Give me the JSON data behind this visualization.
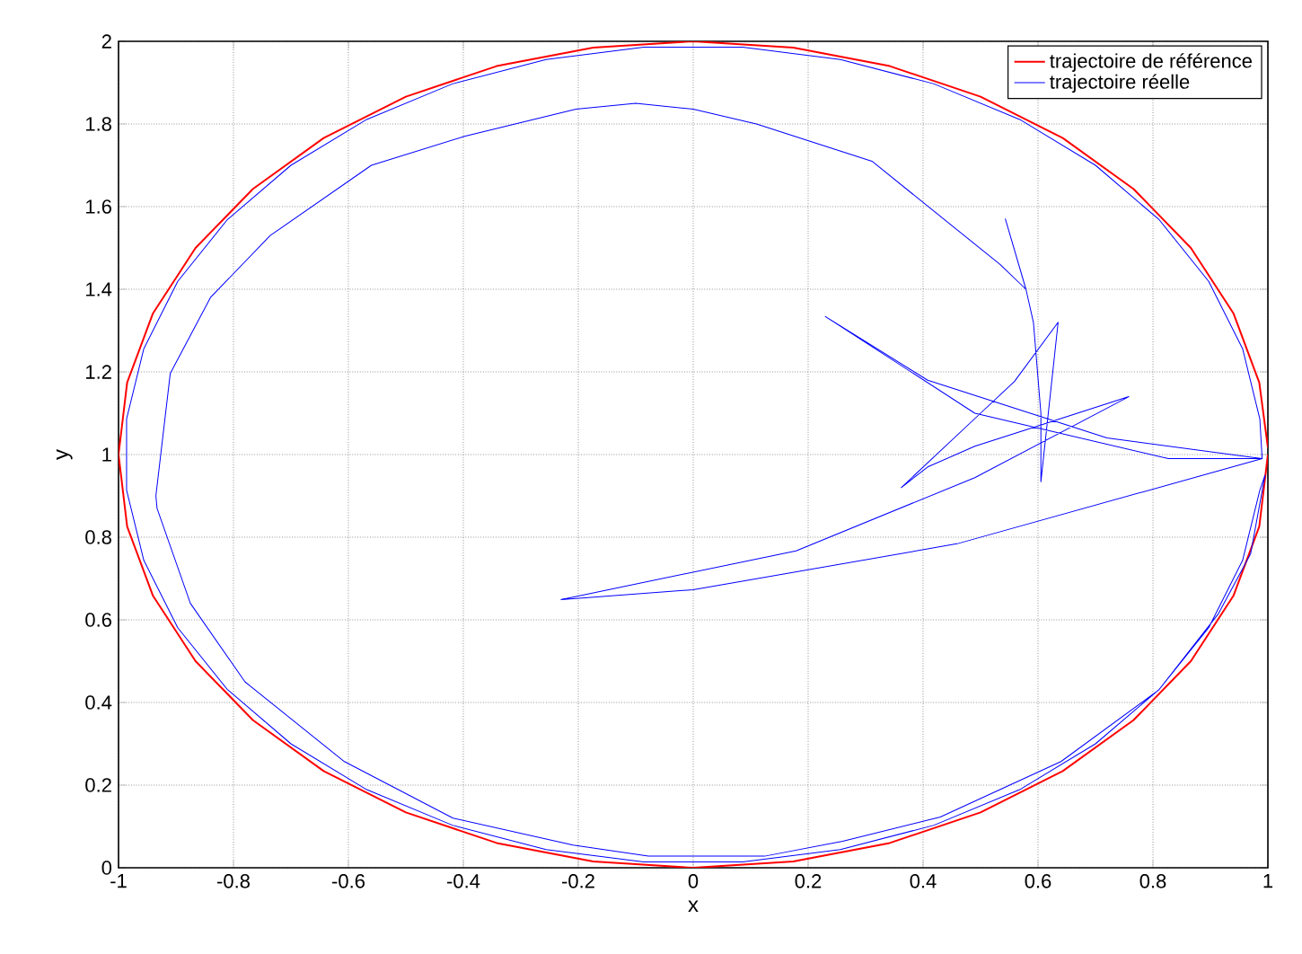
{
  "chart_data": {
    "type": "line",
    "xlabel": "x",
    "ylabel": "y",
    "xlim": [
      -1,
      1
    ],
    "ylim": [
      0,
      2
    ],
    "xticks": [
      -1,
      -0.8,
      -0.6,
      -0.4,
      -0.2,
      0,
      0.2,
      0.4,
      0.6,
      0.8,
      1
    ],
    "yticks": [
      0,
      0.2,
      0.4,
      0.6,
      0.8,
      1,
      1.2,
      1.4,
      1.6,
      1.8,
      2
    ],
    "grid": true,
    "legend": "top right",
    "marker": "none",
    "line_style": "solid",
    "series": [
      {
        "name": "trajectoire de référence",
        "color": "#ff0000",
        "x": [
          1,
          0.985,
          0.94,
          0.866,
          0.766,
          0.643,
          0.5,
          0.342,
          0.174,
          0,
          -0.174,
          -0.342,
          -0.5,
          -0.643,
          -0.766,
          -0.866,
          -0.94,
          -0.985,
          -1,
          -0.985,
          -0.94,
          -0.866,
          -0.766,
          -0.643,
          -0.5,
          -0.342,
          -0.174,
          0,
          0.174,
          0.342,
          0.5,
          0.643,
          0.766,
          0.866,
          0.94,
          0.985,
          1
        ],
        "values": [
          1.017,
          1.174,
          1.342,
          1.5,
          1.643,
          1.766,
          1.866,
          1.94,
          1.985,
          2,
          1.985,
          1.94,
          1.866,
          1.766,
          1.643,
          1.5,
          1.342,
          1.174,
          1,
          0.826,
          0.658,
          0.5,
          0.357,
          0.234,
          0.134,
          0.06,
          0.015,
          0,
          0.015,
          0.06,
          0.134,
          0.234,
          0.357,
          0.5,
          0.658,
          0.826,
          1
        ]
      },
      {
        "name": "trajectoire réelle",
        "color": "#0000ff",
        "x": [
          0.543,
          0.579,
          0.592,
          0.605,
          0.605,
          0.635,
          0.559,
          0.5,
          0.362,
          0.408,
          0.49,
          0.602,
          0.758,
          0.49,
          0.179,
          -0.23,
          0,
          0.459,
          0.99,
          0.72,
          0.408,
          0.23,
          0.49,
          0.827,
          0.99,
          0.986,
          0.956,
          0.897,
          0.811,
          0.7,
          0.568,
          0.419,
          0.256,
          0.086,
          -0.086,
          -0.256,
          -0.419,
          -0.568,
          -0.7,
          -0.811,
          -0.897,
          -0.956,
          -0.986,
          -0.986,
          -0.956,
          -0.897,
          -0.811,
          -0.7,
          -0.568,
          -0.419,
          -0.256,
          -0.086,
          0.086,
          0.256,
          0.419,
          0.568,
          0.7,
          0.811,
          0.897,
          0.956,
          0.986,
          0.995,
          0.97,
          0.914,
          0.81,
          0.64,
          0.43,
          0.26,
          0.124,
          -0.078,
          -0.209,
          -0.418,
          -0.607,
          -0.78,
          -0.875,
          -0.933,
          -0.935,
          -0.91,
          -0.84,
          -0.736,
          -0.56,
          -0.398,
          -0.204,
          -0.1,
          0,
          0.11,
          0.311,
          0.534,
          0.579
        ],
        "values": [
          1.571,
          1.4,
          1.32,
          1.1,
          0.934,
          1.32,
          1.177,
          1.1,
          0.92,
          0.97,
          1.02,
          1.07,
          1.14,
          0.944,
          0.767,
          0.649,
          0.673,
          0.784,
          0.99,
          1.04,
          1.18,
          1.334,
          1.1,
          0.99,
          0.99,
          1.086,
          1.256,
          1.419,
          1.568,
          1.7,
          1.811,
          1.897,
          1.956,
          1.986,
          1.986,
          1.956,
          1.897,
          1.811,
          1.7,
          1.568,
          1.419,
          1.256,
          1.086,
          0.914,
          0.744,
          0.581,
          0.432,
          0.3,
          0.189,
          0.103,
          0.044,
          0.014,
          0.014,
          0.044,
          0.103,
          0.189,
          0.3,
          0.432,
          0.581,
          0.744,
          0.914,
          0.95,
          0.76,
          0.615,
          0.43,
          0.257,
          0.123,
          0.064,
          0.028,
          0.028,
          0.055,
          0.12,
          0.257,
          0.45,
          0.64,
          0.87,
          0.9,
          1.196,
          1.38,
          1.53,
          1.7,
          1.77,
          1.836,
          1.85,
          1.836,
          1.8,
          1.71,
          1.46,
          1.4
        ]
      }
    ]
  }
}
